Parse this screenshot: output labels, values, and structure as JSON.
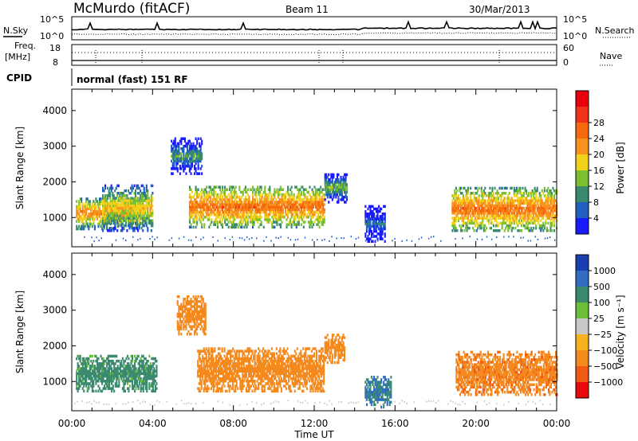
{
  "header": {
    "station": "McMurdo (fitACF)",
    "beam": "Beam 11",
    "date": "30/Mar/2013"
  },
  "status_panel": {
    "noise_left_label": "N.Sky",
    "noise_right_label": "N.Search",
    "noise_left_ticks": [
      "10^5",
      "10^0"
    ],
    "noise_right_ticks": [
      "10^5",
      "10^0"
    ],
    "freq_label": "Freq.",
    "freq_unit": "[MHz]",
    "freq_ticks": [
      "18",
      "8"
    ],
    "nave_label": "Nave",
    "nave_ticks": [
      "60",
      "0"
    ],
    "cpid_label": "CPID",
    "cpid_value": "normal (fast) 151 RF"
  },
  "chart_data": [
    {
      "type": "heatmap",
      "name": "power",
      "title": "",
      "xlabel": "",
      "ylabel": "Slant Range [km]",
      "xlim": [
        0,
        24
      ],
      "ylim": [
        180,
        4600
      ],
      "yticks": [
        "1000",
        "2000",
        "3000",
        "4000"
      ],
      "colorbar": {
        "label": "Power [dB]",
        "ticks": [
          "4",
          "8",
          "12",
          "16",
          "20",
          "24",
          "28"
        ],
        "colors": [
          "#1a1aff",
          "#2060c0",
          "#3a8a70",
          "#7cc030",
          "#f2d11a",
          "#f7931e",
          "#f46a0c",
          "#f03218",
          "#e8000b"
        ]
      },
      "bands": [
        {
          "t0": 0.2,
          "t1": 3.4,
          "r0": 650,
          "r1": 1550,
          "v": 22
        },
        {
          "t0": 1.5,
          "t1": 4.0,
          "r0": 600,
          "r1": 1900,
          "v": 18
        },
        {
          "t0": 4.9,
          "t1": 6.4,
          "r0": 2200,
          "r1": 3200,
          "v": 10
        },
        {
          "t0": 5.8,
          "t1": 12.5,
          "r0": 700,
          "r1": 1850,
          "v": 24
        },
        {
          "t0": 12.5,
          "t1": 13.6,
          "r0": 1400,
          "r1": 2200,
          "v": 12
        },
        {
          "t0": 14.5,
          "t1": 15.5,
          "r0": 300,
          "r1": 1300,
          "v": 6
        },
        {
          "t0": 18.8,
          "t1": 24.0,
          "r0": 600,
          "r1": 1800,
          "v": 24
        }
      ]
    },
    {
      "type": "heatmap",
      "name": "velocity",
      "title": "",
      "xlabel": "Time UT",
      "ylabel": "Slant Range [km]",
      "xlim": [
        0,
        24
      ],
      "ylim": [
        180,
        4600
      ],
      "xticks": [
        "00:00",
        "04:00",
        "08:00",
        "12:00",
        "16:00",
        "20:00",
        "00:00"
      ],
      "yticks": [
        "1000",
        "2000",
        "3000",
        "4000"
      ],
      "colorbar": {
        "label": "Velocity [m s⁻¹]",
        "ticks": [
          "1000",
          "500",
          "100",
          "25",
          "−25",
          "−100",
          "−500",
          "−1000"
        ],
        "colors": [
          "#1a3fb0",
          "#2f6cc2",
          "#3a8a70",
          "#6dbf3a",
          "#c8c8c8",
          "#f7b21e",
          "#f48a1e",
          "#f05a14",
          "#e80a0a"
        ]
      },
      "bands": [
        {
          "t0": 0.2,
          "t1": 4.2,
          "r0": 700,
          "r1": 1700,
          "v": 150
        },
        {
          "t0": 5.2,
          "t1": 6.6,
          "r0": 2300,
          "r1": 3400,
          "v": -300
        },
        {
          "t0": 6.2,
          "t1": 12.5,
          "r0": 700,
          "r1": 1900,
          "v": -300
        },
        {
          "t0": 12.5,
          "t1": 13.5,
          "r0": 1500,
          "r1": 2300,
          "v": -200
        },
        {
          "t0": 14.5,
          "t1": 15.8,
          "r0": 250,
          "r1": 1100,
          "v": 500
        },
        {
          "t0": 19.0,
          "t1": 24.0,
          "r0": 600,
          "r1": 1800,
          "v": -400
        }
      ]
    }
  ]
}
